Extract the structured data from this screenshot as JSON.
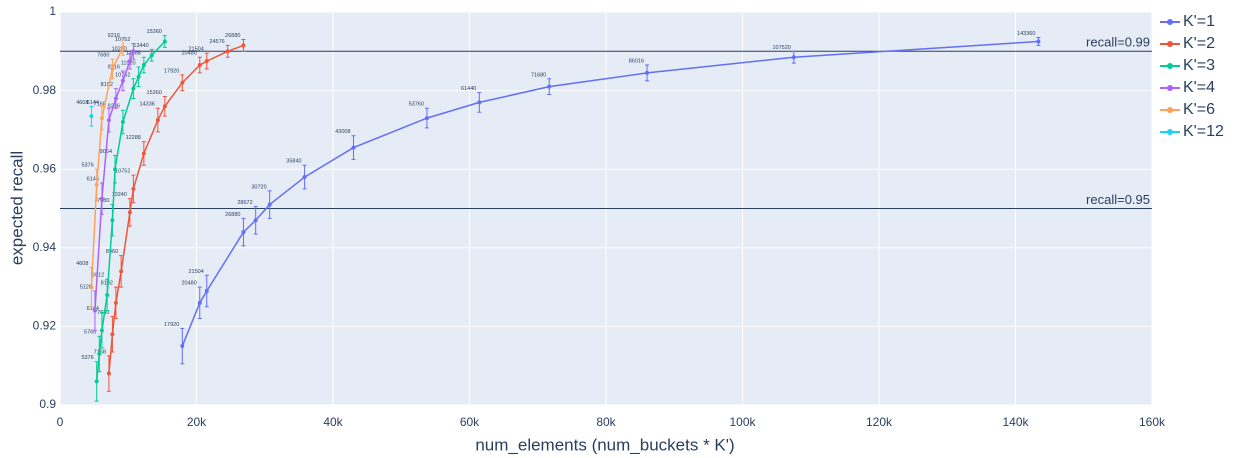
{
  "chart_data": {
    "type": "line",
    "xlabel": "num_elements (num_buckets * K')",
    "ylabel": "expected recall",
    "xlim": [
      0,
      160000
    ],
    "xticks": [
      0,
      {
        "value": 20000,
        "label": "20k"
      },
      {
        "value": 40000,
        "label": "40k"
      },
      {
        "value": 60000,
        "label": "60k"
      },
      {
        "value": 80000,
        "label": "80k"
      },
      {
        "value": 100000,
        "label": "100k"
      },
      {
        "value": 120000,
        "label": "120k"
      },
      {
        "value": 140000,
        "label": "140k"
      },
      {
        "value": 160000,
        "label": "160k"
      }
    ],
    "ylim": [
      0.9,
      1
    ],
    "yticks": [
      0.9,
      0.92,
      0.94,
      0.96,
      0.98,
      1
    ],
    "grid": true,
    "legend": "right",
    "hlines": [
      {
        "value": 0.99,
        "label": "recall=0.99"
      },
      {
        "value": 0.95,
        "label": "recall=0.95"
      }
    ],
    "series": [
      {
        "name": "K'=1",
        "color": "#636efa",
        "x": [
          17920,
          20480,
          21504,
          26880,
          28672,
          30720,
          35840,
          43008,
          53760,
          61440,
          71680,
          86016,
          107520,
          143360
        ],
        "values": [
          0.915,
          0.926,
          0.929,
          0.944,
          0.947,
          0.951,
          0.958,
          0.9655,
          0.973,
          0.977,
          0.981,
          0.9845,
          0.9885,
          0.9925
        ],
        "errors": [
          0.0045,
          0.004,
          0.004,
          0.0035,
          0.0035,
          0.0035,
          0.003,
          0.003,
          0.0025,
          0.0025,
          0.002,
          0.002,
          0.0015,
          0.001
        ]
      },
      {
        "name": "K'=2",
        "color": "#EF553B",
        "x": [
          7168,
          7680,
          8192,
          8960,
          10240,
          10752,
          12288,
          14336,
          15360,
          17920,
          20480,
          21504,
          24576,
          26880
        ],
        "values": [
          0.908,
          0.918,
          0.926,
          0.934,
          0.949,
          0.955,
          0.964,
          0.9725,
          0.976,
          0.982,
          0.9865,
          0.9875,
          0.99,
          0.9915
        ],
        "errors": [
          0.0045,
          0.0045,
          0.004,
          0.004,
          0.0035,
          0.0035,
          0.003,
          0.003,
          0.0025,
          0.002,
          0.002,
          0.002,
          0.0015,
          0.0015
        ]
      },
      {
        "name": "K'=3",
        "color": "#00cc96",
        "x": [
          5376,
          5760,
          6144,
          6912,
          7680,
          8064,
          9216,
          10752,
          11520,
          12288,
          13440,
          15360
        ],
        "values": [
          0.906,
          0.913,
          0.919,
          0.928,
          0.947,
          0.96,
          0.972,
          0.9805,
          0.9835,
          0.9865,
          0.989,
          0.9925
        ],
        "errors": [
          0.005,
          0.0045,
          0.0045,
          0.004,
          0.004,
          0.0035,
          0.003,
          0.0025,
          0.0025,
          0.002,
          0.0015,
          0.0015
        ]
      },
      {
        "name": "K'=4",
        "color": "#ab63fa",
        "x": [
          5120,
          6144,
          7168,
          8192,
          9216,
          10240,
          10752
        ],
        "values": [
          0.924,
          0.9525,
          0.9725,
          0.978,
          0.9825,
          0.9875,
          0.99
        ],
        "errors": [
          0.005,
          0.004,
          0.003,
          0.0025,
          0.0025,
          0.002,
          0.002
        ]
      },
      {
        "name": "K'=6",
        "color": "#FFA15A",
        "x": [
          4608,
          5376,
          6144,
          7680,
          9216
        ],
        "values": [
          0.93,
          0.956,
          0.973,
          0.9855,
          0.991
        ],
        "errors": [
          0.005,
          0.004,
          0.003,
          0.0025,
          0.002
        ]
      },
      {
        "name": "K'=12",
        "color": "#19d3f3",
        "x": [
          4608
        ],
        "values": [
          0.9735
        ],
        "errors": [
          0.0025
        ]
      }
    ]
  }
}
